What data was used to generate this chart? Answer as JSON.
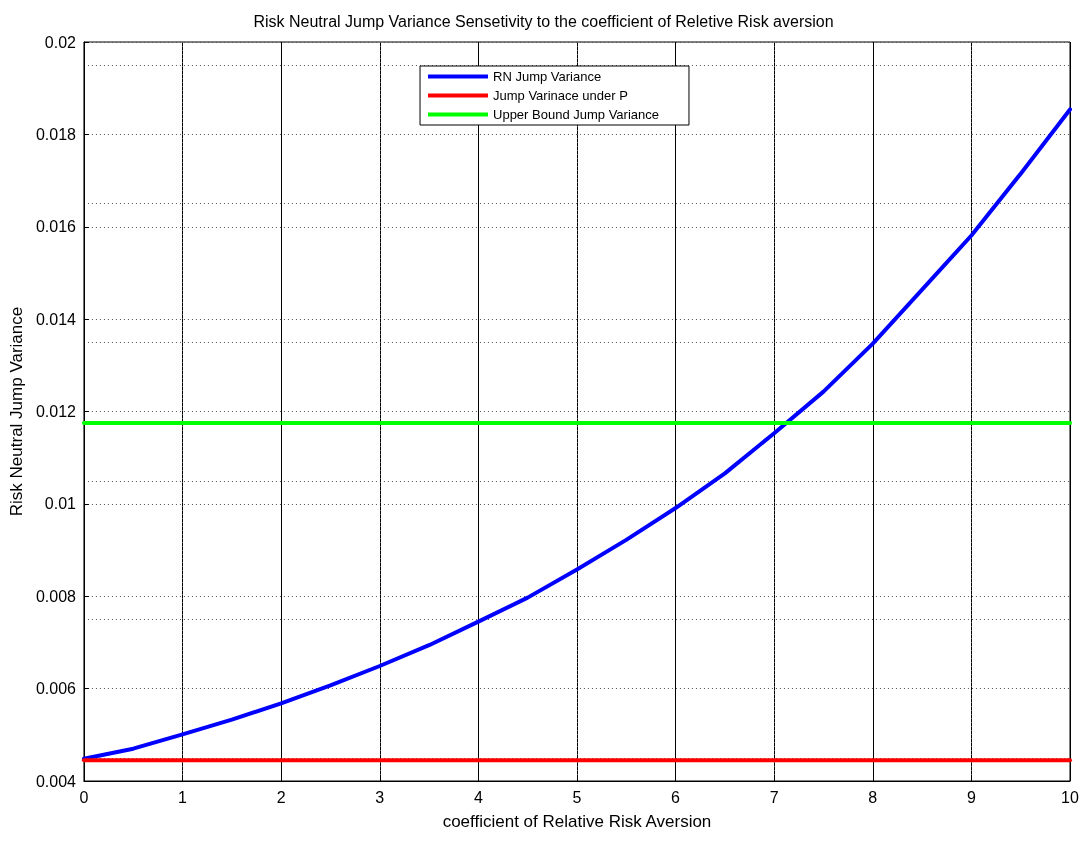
{
  "chart_data": {
    "type": "line",
    "title": "Risk Neutral Jump Variance Sensetivity to the coefficient of Reletive Risk aversion",
    "xlabel": "coefficient of Relative Risk Aversion",
    "ylabel": "Risk Neutral Jump Variance",
    "x": [
      0,
      0.5,
      1,
      1.5,
      2,
      2.5,
      3,
      3.5,
      4,
      4.5,
      5,
      5.5,
      6,
      6.5,
      7,
      7.5,
      8,
      8.5,
      9,
      9.5,
      10
    ],
    "series": [
      {
        "name": "RN Jump Variance",
        "color": "#0000ff",
        "values": [
          0.00448,
          0.0047,
          0.00501,
          0.00533,
          0.00568,
          0.00607,
          0.00649,
          0.00694,
          0.00745,
          0.00797,
          0.00858,
          0.00922,
          0.00991,
          0.01066,
          0.01153,
          0.01243,
          0.01347,
          0.01464,
          0.01581,
          0.01715,
          0.01854
        ]
      },
      {
        "name": "Jump Varinace under P",
        "color": "#ff0000",
        "values": [
          0.00445,
          0.00445,
          0.00445,
          0.00445,
          0.00445,
          0.00445,
          0.00445,
          0.00445,
          0.00445,
          0.00445,
          0.00445,
          0.00445,
          0.00445,
          0.00445,
          0.00445,
          0.00445,
          0.00445,
          0.00445,
          0.00445,
          0.00445,
          0.00445
        ]
      },
      {
        "name": "Upper Bound Jump Variance",
        "color": "#00ff00",
        "values": [
          0.01175,
          0.01175,
          0.01175,
          0.01175,
          0.01175,
          0.01175,
          0.01175,
          0.01175,
          0.01175,
          0.01175,
          0.01175,
          0.01175,
          0.01175,
          0.01175,
          0.01175,
          0.01175,
          0.01175,
          0.01175,
          0.01175,
          0.01175,
          0.01175
        ]
      }
    ],
    "xlim": [
      0,
      10
    ],
    "xticks": [
      0,
      1,
      2,
      3,
      4,
      5,
      6,
      7,
      8,
      9,
      10
    ],
    "ylim": [
      0.004,
      0.02
    ],
    "yticks": [
      0.004,
      0.006,
      0.008,
      0.01,
      0.012,
      0.014,
      0.016,
      0.018,
      0.02
    ],
    "grid": true,
    "legend": "top",
    "marker": "none",
    "line_style": "solid"
  }
}
